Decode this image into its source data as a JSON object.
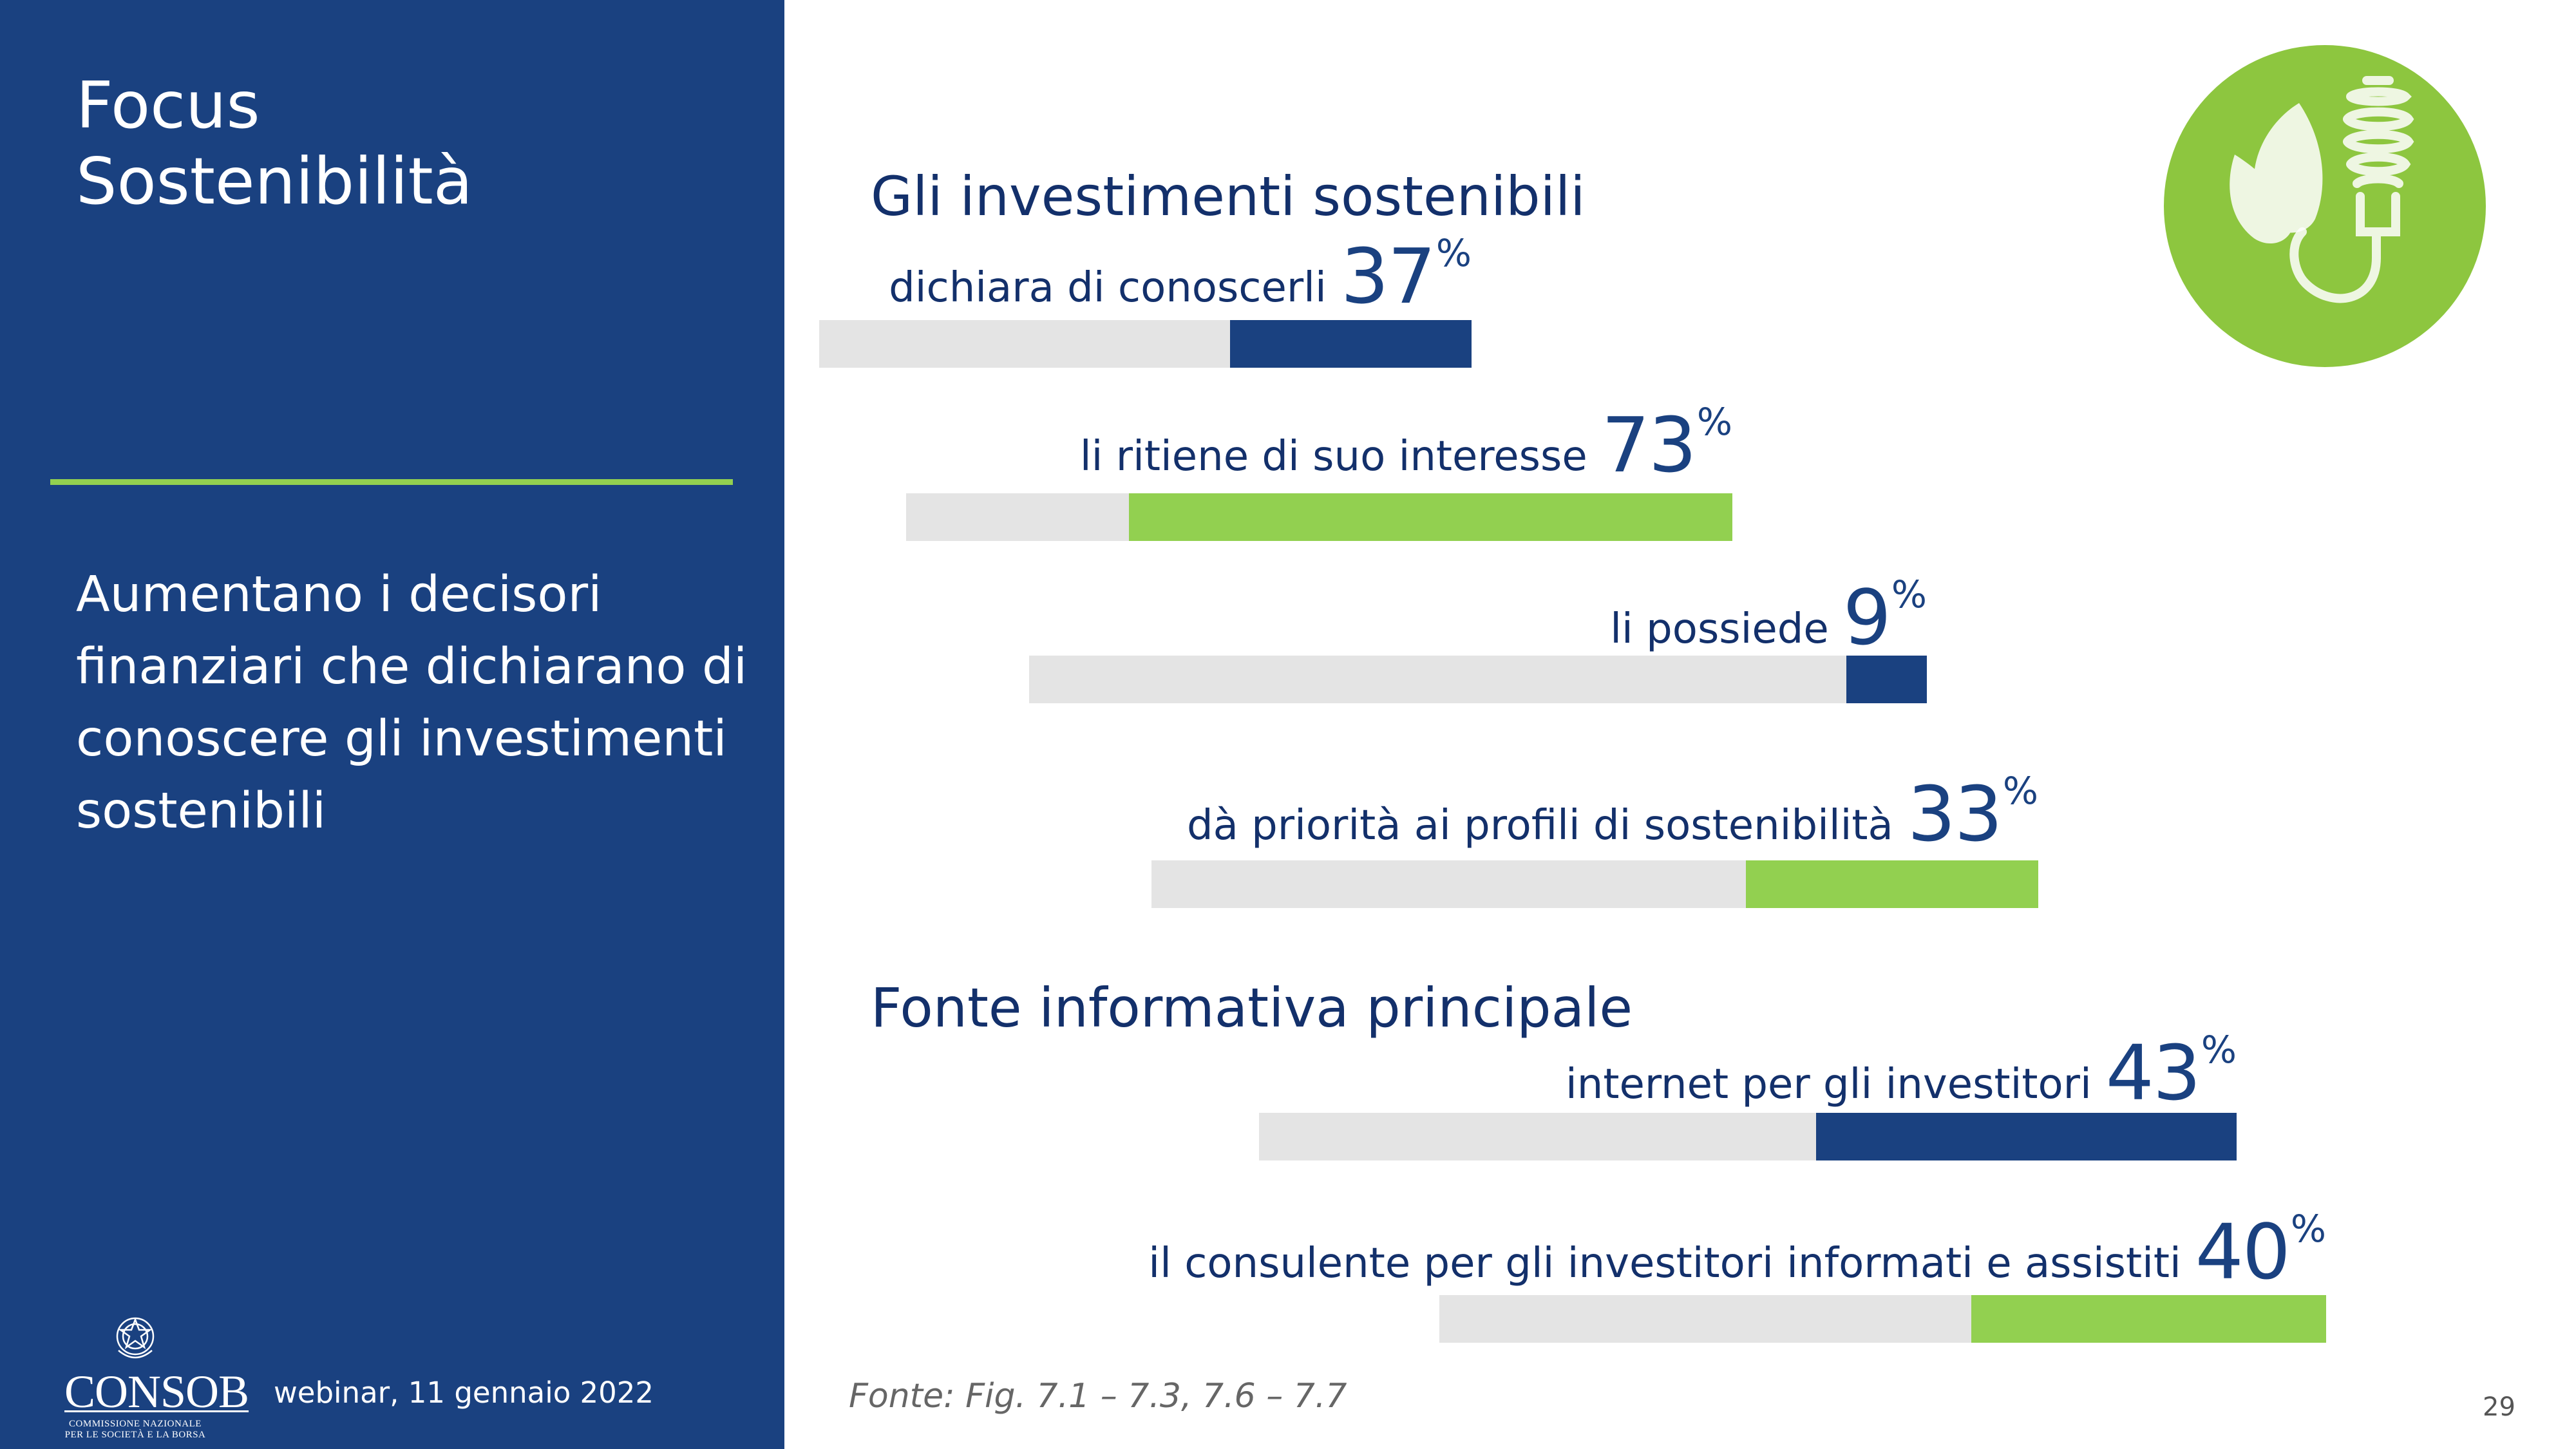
{
  "panel": {
    "title_line1": "Focus",
    "title_line2": "Sostenibilità",
    "subtitle": "Aumentano i decisori finanziari che dichiarano di conoscere gli investimenti sostenibili",
    "date": "webinar, 11 gennaio 2022",
    "logo": {
      "name": "CONSOB",
      "line1": "COMMISSIONE NAZIONALE",
      "line2": "PER LE SOCIETÀ E LA BORSA"
    },
    "background_color": "#1a4180",
    "divider_color": "#92d050"
  },
  "icon": {
    "name": "leaf-lightbulb-icon",
    "circle_color": "#8dc63f"
  },
  "colors": {
    "dark": "#1a4180",
    "green": "#92d050",
    "track": "#e4e4e4"
  },
  "chart_data": {
    "type": "bar",
    "title": "",
    "sections": [
      {
        "heading": "Gli investimenti sostenibili",
        "rows": [
          {
            "label": "dichiara di conoscerli",
            "value": 37,
            "unit": "%",
            "color": "#1a4180"
          },
          {
            "label": "li ritiene di suo interesse",
            "value": 73,
            "unit": "%",
            "color": "#92d050"
          },
          {
            "label": "li possiede",
            "value": 9,
            "unit": "%",
            "color": "#1a4180"
          },
          {
            "label": "dà priorità ai profili di sostenibilità",
            "value": 33,
            "unit": "%",
            "color": "#92d050"
          }
        ]
      },
      {
        "heading": "Fonte informativa principale",
        "rows": [
          {
            "label": "internet per gli investitori",
            "value": 43,
            "unit": "%",
            "color": "#1a4180"
          },
          {
            "label": "il consulente per gli investitori informati e assistiti",
            "value": 40,
            "unit": "%",
            "color": "#92d050"
          }
        ]
      }
    ],
    "ylim": [
      0,
      100
    ]
  },
  "source": "Fonte: Fig. 7.1 – 7.3, 7.6 – 7.7",
  "page_number": "29"
}
